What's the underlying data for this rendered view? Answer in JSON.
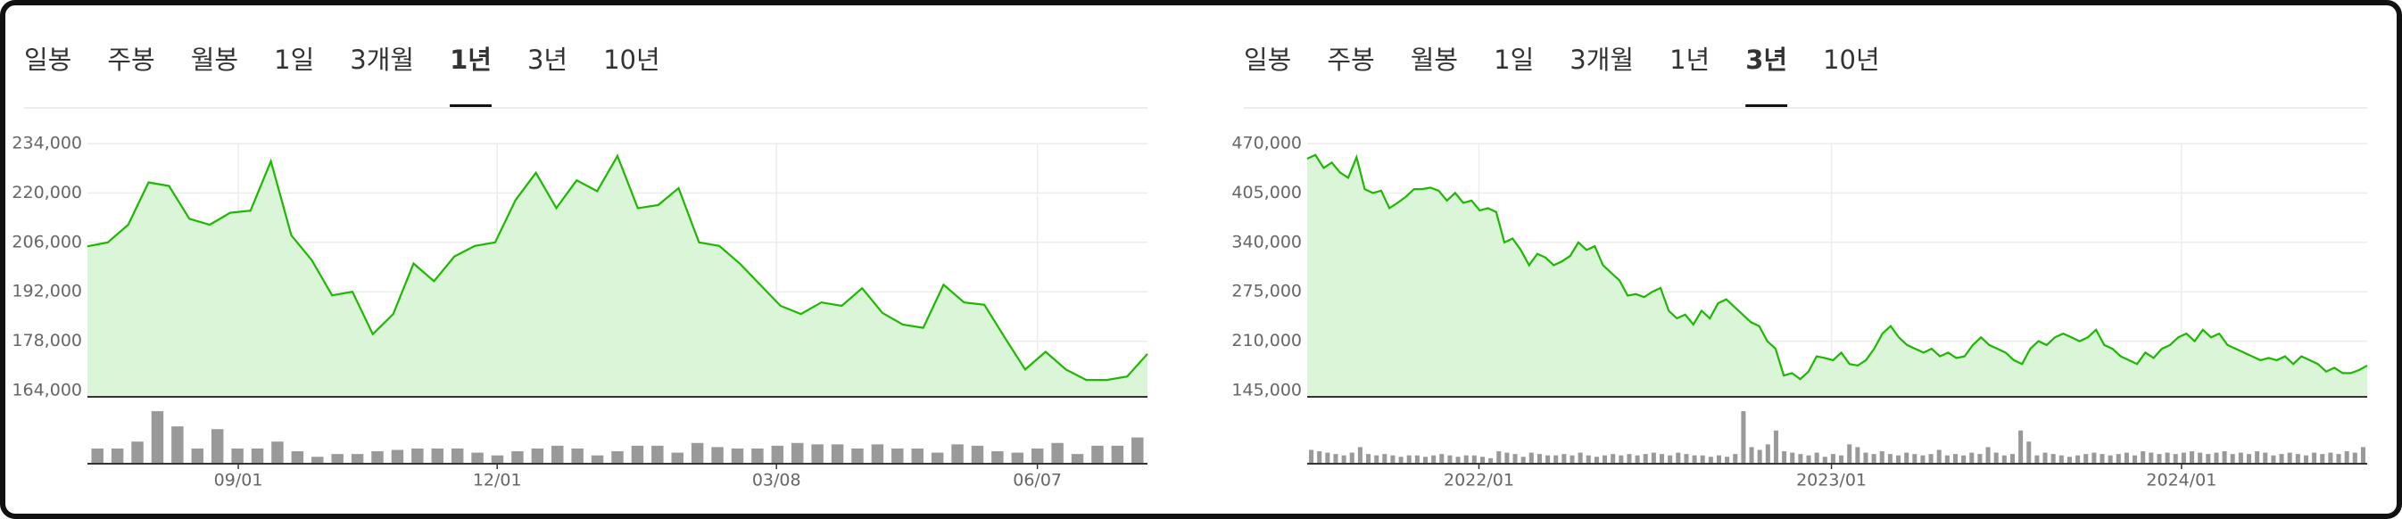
{
  "chart_data": [
    {
      "type": "area",
      "tabs": [
        "일봉",
        "주봉",
        "월봉",
        "1일",
        "3개월",
        "1년",
        "3년",
        "10년"
      ],
      "selected_tab": 5,
      "color": "#1db800",
      "fill": "#daf5d7",
      "volume_color": "#999999",
      "grid": true,
      "values": [
        204900,
        206000,
        211000,
        223000,
        222000,
        212700,
        211000,
        214400,
        215000,
        229000,
        208000,
        201000,
        191000,
        192000,
        180000,
        185700,
        200000,
        195000,
        202000,
        205000,
        206000,
        218000,
        225700,
        215700,
        223600,
        220500,
        230500,
        215700,
        216600,
        221400,
        206000,
        205000,
        200000,
        194000,
        188000,
        185700,
        189000,
        188000,
        193000,
        186000,
        182700,
        181800,
        194000,
        189000,
        188300,
        179000,
        170000,
        175000,
        170000,
        167000,
        167000,
        168000,
        174400
      ],
      "volume": [
        11,
        11,
        16,
        38,
        27,
        11,
        25,
        11,
        11,
        16,
        9,
        5,
        7,
        7,
        9,
        10,
        11,
        11,
        11,
        8,
        6,
        9,
        11,
        13,
        11,
        6,
        9,
        13,
        13,
        8,
        15,
        12,
        11,
        11,
        13,
        15,
        14,
        14,
        11,
        14,
        11,
        11,
        8,
        14,
        13,
        9,
        8,
        11,
        15,
        7,
        13,
        13,
        19
      ],
      "volume_ylim": [
        0,
        40
      ],
      "ylim": [
        164000,
        234000
      ],
      "yticks": [
        {
          "value": 164000,
          "label": "164,000"
        },
        {
          "value": 178000,
          "label": "178,000"
        },
        {
          "value": 192000,
          "label": "192,000"
        },
        {
          "value": 206000,
          "label": "206,000"
        },
        {
          "value": 220000,
          "label": "220,000"
        },
        {
          "value": 234000,
          "label": "234,000"
        }
      ],
      "xlim": [
        0,
        52
      ],
      "xticks": [
        {
          "value": 7.4,
          "label": "09/01"
        },
        {
          "value": 20.1,
          "label": "12/01"
        },
        {
          "value": 33.8,
          "label": "03/08"
        },
        {
          "value": 46.6,
          "label": "06/07"
        }
      ]
    },
    {
      "type": "area",
      "tabs": [
        "일봉",
        "주봉",
        "월봉",
        "1일",
        "3개월",
        "1년",
        "3년",
        "10년"
      ],
      "selected_tab": 6,
      "color": "#1db800",
      "fill": "#daf5d7",
      "volume_color": "#999999",
      "grid": true,
      "values": [
        450000,
        455000,
        438000,
        445000,
        432000,
        425000,
        452000,
        410000,
        405000,
        408000,
        385000,
        392000,
        400000,
        410000,
        410000,
        412000,
        408000,
        395000,
        405000,
        392000,
        395000,
        382000,
        385000,
        380000,
        340000,
        345000,
        330000,
        310000,
        325000,
        320000,
        310000,
        315000,
        322000,
        340000,
        330000,
        335000,
        310000,
        300000,
        290000,
        270000,
        272000,
        268000,
        275000,
        280000,
        250000,
        240000,
        245000,
        232000,
        250000,
        240000,
        260000,
        265000,
        255000,
        245000,
        235000,
        230000,
        210000,
        200000,
        165000,
        168000,
        160000,
        170000,
        190000,
        188000,
        185000,
        195000,
        180000,
        178000,
        185000,
        200000,
        220000,
        230000,
        215000,
        205000,
        200000,
        195000,
        200000,
        190000,
        195000,
        188000,
        190000,
        205000,
        215000,
        205000,
        200000,
        195000,
        185000,
        180000,
        200000,
        210000,
        205000,
        215000,
        220000,
        215000,
        210000,
        215000,
        225000,
        205000,
        200000,
        190000,
        185000,
        180000,
        195000,
        188000,
        200000,
        205000,
        215000,
        220000,
        210000,
        225000,
        215000,
        220000,
        205000,
        200000,
        195000,
        190000,
        185000,
        188000,
        185000,
        190000,
        180000,
        190000,
        185000,
        180000,
        170000,
        175000,
        168000,
        168000,
        172000,
        178000
      ],
      "volume": [
        10,
        9,
        8,
        7,
        6,
        8,
        12,
        7,
        6,
        7,
        6,
        5,
        6,
        6,
        5,
        6,
        7,
        6,
        5,
        6,
        6,
        5,
        4,
        9,
        8,
        7,
        5,
        8,
        7,
        6,
        6,
        7,
        6,
        8,
        6,
        5,
        6,
        7,
        6,
        7,
        6,
        7,
        8,
        7,
        6,
        8,
        7,
        6,
        6,
        5,
        6,
        5,
        7,
        38,
        12,
        10,
        14,
        24,
        9,
        8,
        7,
        6,
        8,
        5,
        7,
        6,
        14,
        12,
        8,
        7,
        9,
        7,
        6,
        8,
        7,
        6,
        7,
        10,
        6,
        7,
        6,
        8,
        7,
        12,
        8,
        6,
        7,
        24,
        16,
        6,
        8,
        7,
        6,
        5,
        6,
        7,
        8,
        7,
        6,
        7,
        8,
        6,
        9,
        8,
        7,
        8,
        7,
        8,
        9,
        8,
        7,
        8,
        9,
        7,
        8,
        7,
        9,
        8,
        6,
        7,
        8,
        7,
        6,
        8,
        7,
        8,
        7,
        9,
        8,
        12
      ],
      "volume_ylim": [
        0,
        40
      ],
      "ylim": [
        145000,
        470000
      ],
      "yticks": [
        {
          "value": 145000,
          "label": "145,000"
        },
        {
          "value": 210000,
          "label": "210,000"
        },
        {
          "value": 275000,
          "label": "275,000"
        },
        {
          "value": 340000,
          "label": "340,000"
        },
        {
          "value": 405000,
          "label": "405,000"
        },
        {
          "value": 470000,
          "label": "470,000"
        }
      ],
      "xlim": [
        0,
        129
      ],
      "xticks": [
        {
          "value": 20.9,
          "label": "2022/01"
        },
        {
          "value": 63.8,
          "label": "2023/01"
        },
        {
          "value": 106.4,
          "label": "2024/01"
        }
      ]
    }
  ]
}
